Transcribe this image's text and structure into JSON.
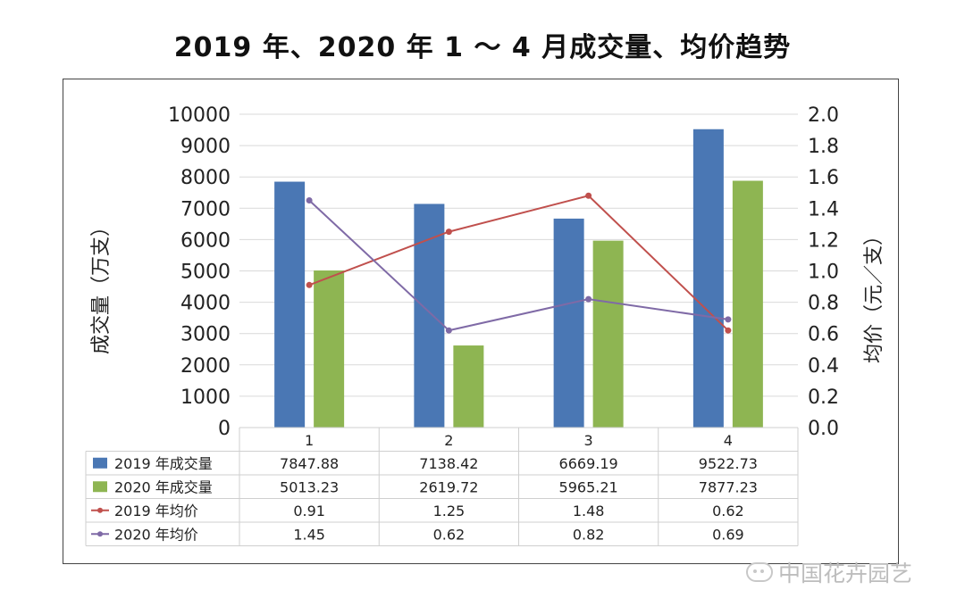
{
  "title": "2019 年、2020 年 1 ～ 4 月成交量、均价趋势",
  "watermark": "中国花卉园艺",
  "colors": {
    "bar2019": "#4a77b4",
    "bar2020": "#8eb552",
    "line2019": "#c0504d",
    "line2020": "#7f6aa6",
    "grid": "#d9d9d9"
  },
  "chart_data": {
    "type": "bar",
    "title": "2019 年、2020 年 1 ～ 4 月成交量、均价趋势",
    "categories": [
      "1",
      "2",
      "3",
      "4"
    ],
    "ylabel": "成交量（万支）",
    "y2label": "均价（元／支）",
    "ylim": [
      0,
      10000
    ],
    "y2lim": [
      0,
      2.0
    ],
    "yticks": [
      "0",
      "1000",
      "2000",
      "3000",
      "4000",
      "5000",
      "6000",
      "7000",
      "8000",
      "9000",
      "10000"
    ],
    "y2ticks": [
      "0.0",
      "0.2",
      "0.4",
      "0.6",
      "0.8",
      "1.0",
      "1.2",
      "1.4",
      "1.6",
      "1.8",
      "2.0"
    ],
    "grid": true,
    "legend": "data-table-below",
    "series": [
      {
        "name": "2019 年成交量",
        "kind": "bar",
        "axis": "left",
        "values": [
          7847.88,
          7138.42,
          6669.19,
          9522.73
        ],
        "labels": [
          "7847.88",
          "7138.42",
          "6669.19",
          "9522.73"
        ]
      },
      {
        "name": "2020 年成交量",
        "kind": "bar",
        "axis": "left",
        "values": [
          5013.23,
          2619.72,
          5965.21,
          7877.23
        ],
        "labels": [
          "5013.23",
          "2619.72",
          "5965.21",
          "7877.23"
        ]
      },
      {
        "name": "2019 年均价",
        "kind": "line",
        "axis": "right",
        "values": [
          0.91,
          1.25,
          1.48,
          0.62
        ],
        "labels": [
          "0.91",
          "1.25",
          "1.48",
          "0.62"
        ]
      },
      {
        "name": "2020 年均价",
        "kind": "line",
        "axis": "right",
        "values": [
          1.45,
          0.62,
          0.82,
          0.69
        ],
        "labels": [
          "1.45",
          "0.62",
          "0.82",
          "0.69"
        ]
      }
    ]
  }
}
